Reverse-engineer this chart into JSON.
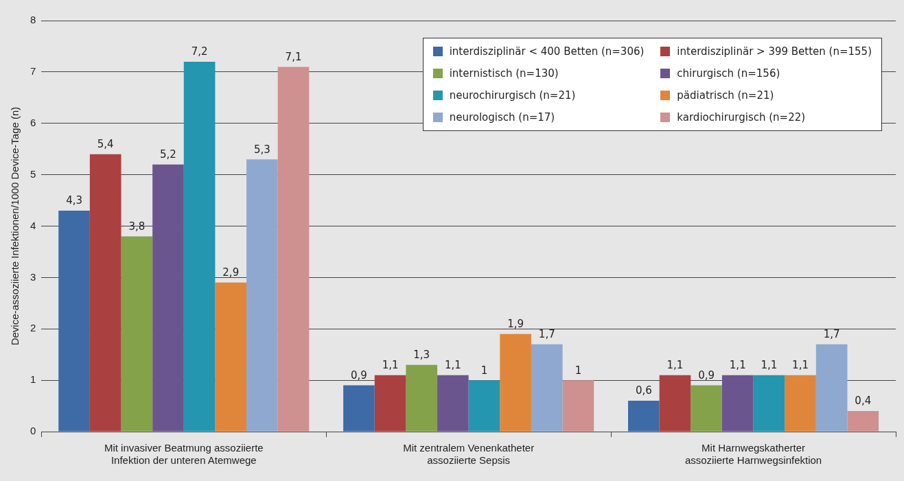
{
  "chart_data": {
    "type": "bar",
    "ylabel": "Device-assoziierte Infektionen/1000 Device-Tage (n)",
    "categories": [
      "Mit invasiver Beatmung assoziierte Infektion der unteren Atemwege",
      "Mit zentralem Venenkatheter assoziierte Sepsis",
      "Mit Harnwegskatherter assoziierte Harnwegsinfektion"
    ],
    "series": [
      {
        "name": "interdisziplinär < 400 Betten (n=306)",
        "color": "#3e6aa6",
        "values": [
          4.3,
          0.9,
          0.6
        ],
        "value_labels": [
          "4,3",
          "0,9",
          "0,6"
        ]
      },
      {
        "name": "interdisziplinär > 399 Betten (n=155)",
        "color": "#ab4040",
        "values": [
          5.4,
          1.1,
          1.1
        ],
        "value_labels": [
          "5,4",
          "1,1",
          "1,1"
        ]
      },
      {
        "name": "internistisch (n=130)",
        "color": "#84a24a",
        "values": [
          3.8,
          1.3,
          0.9
        ],
        "value_labels": [
          "3,8",
          "1,3",
          "0,9"
        ]
      },
      {
        "name": "chirurgisch (n=156)",
        "color": "#6b558f",
        "values": [
          5.2,
          1.1,
          1.1
        ],
        "value_labels": [
          "5,2",
          "1,1",
          "1,1"
        ]
      },
      {
        "name": "neurochirurgisch (n=21)",
        "color": "#2496b0",
        "values": [
          7.2,
          1,
          1.1
        ],
        "value_labels": [
          "7,2",
          "1",
          "1,1"
        ]
      },
      {
        "name": "pädiatrisch (n=21)",
        "color": "#e0863a",
        "values": [
          2.9,
          1.9,
          1.1
        ],
        "value_labels": [
          "2,9",
          "1,9",
          "1,1"
        ]
      },
      {
        "name": "neurologisch (n=17)",
        "color": "#8fa8cf",
        "values": [
          5.3,
          1.7,
          1.7
        ],
        "value_labels": [
          "5,3",
          "1,7",
          "1,7"
        ]
      },
      {
        "name": "kardiochirurgisch (n=22)",
        "color": "#cf9090",
        "values": [
          7.1,
          1,
          0.4
        ],
        "value_labels": [
          "7,1",
          "1",
          "0,4"
        ]
      }
    ],
    "ylim": [
      0,
      8
    ],
    "yticks": [
      0,
      1,
      2,
      3,
      4,
      5,
      6,
      7,
      8
    ],
    "grid": "y",
    "legend": "top right"
  }
}
